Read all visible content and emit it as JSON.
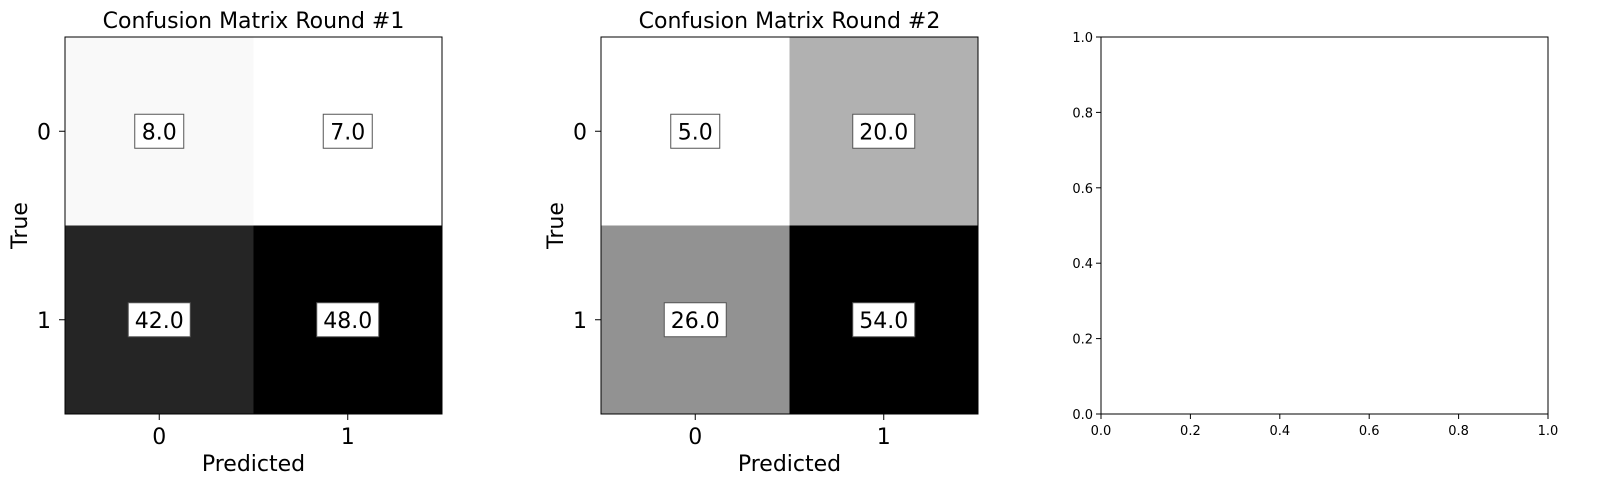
{
  "chart_data": [
    {
      "type": "heatmap",
      "title": "Confusion Matrix Round #1",
      "xlabel": "Predicted",
      "ylabel": "True",
      "x_ticks": [
        "0",
        "1"
      ],
      "y_ticks": [
        "0",
        "1"
      ],
      "colormap": "Greys",
      "values": [
        [
          8.0,
          7.0
        ],
        [
          42.0,
          48.0
        ]
      ],
      "value_labels": [
        [
          "8.0",
          "7.0"
        ],
        [
          "42.0",
          "48.0"
        ]
      ]
    },
    {
      "type": "heatmap",
      "title": "Confusion Matrix Round #2",
      "xlabel": "Predicted",
      "ylabel": "True",
      "x_ticks": [
        "0",
        "1"
      ],
      "y_ticks": [
        "0",
        "1"
      ],
      "colormap": "Greys",
      "values": [
        [
          5.0,
          20.0
        ],
        [
          26.0,
          54.0
        ]
      ],
      "value_labels": [
        [
          "5.0",
          "20.0"
        ],
        [
          "26.0",
          "54.0"
        ]
      ]
    },
    {
      "type": "scatter",
      "title": "",
      "xlabel": "",
      "ylabel": "",
      "xlim": [
        0.0,
        1.0
      ],
      "ylim": [
        0.0,
        1.0
      ],
      "x_ticks": [
        "0.0",
        "0.2",
        "0.4",
        "0.6",
        "0.8",
        "1.0"
      ],
      "y_ticks": [
        "0.0",
        "0.2",
        "0.4",
        "0.6",
        "0.8",
        "1.0"
      ],
      "series": []
    }
  ]
}
